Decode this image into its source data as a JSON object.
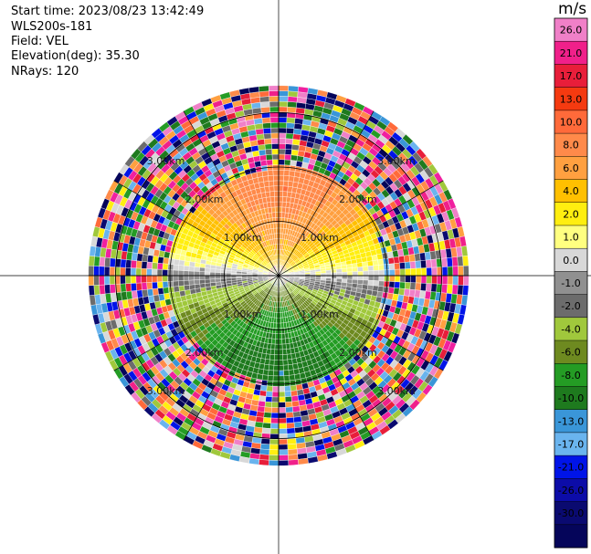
{
  "header": {
    "start_time": "Start time: 2023/08/23 13:42:49",
    "instrument": "WLS200s-181",
    "field": "Field: VEL",
    "elevation": "Elevation(deg): 35.30",
    "nrays": "NRays: 120"
  },
  "colorbar": {
    "unit": "m/s",
    "ticks": [
      "26.0",
      "21.0",
      "17.0",
      "13.0",
      "10.0",
      "8.0",
      "6.0",
      "4.0",
      "2.0",
      "1.0",
      "0.0",
      "-1.0",
      "-2.0",
      "-4.0",
      "-6.0",
      "-8.0",
      "-10.0",
      "-13.0",
      "-17.0",
      "-21.0",
      "-26.0",
      "-30.0"
    ],
    "colors": [
      "#f080c8",
      "#f0208a",
      "#e81e3a",
      "#f53a10",
      "#ff6a3a",
      "#ff8a4a",
      "#ffa040",
      "#ffc000",
      "#ffee10",
      "#ffff80",
      "#d8d8d8",
      "#909090",
      "#6c6c6c",
      "#a0c83c",
      "#6e8a20",
      "#249c24",
      "#1e7a1e",
      "#3a96d8",
      "#6ab4ee",
      "#0014e8",
      "#0c0ca8",
      "#0a0a70",
      "#05055a"
    ]
  },
  "chart_data": {
    "type": "heatmap",
    "projection": "polar PPI",
    "field": "VEL",
    "unit": "m/s",
    "nrays": 120,
    "range_rings_km": [
      1,
      2,
      3
    ],
    "range_labels": [
      "1.00km",
      "2.00km",
      "3.00km"
    ],
    "clean_data_radius_km": 2.0,
    "outer_radius_km": 3.5,
    "vlim": [
      -30,
      26
    ]
  }
}
